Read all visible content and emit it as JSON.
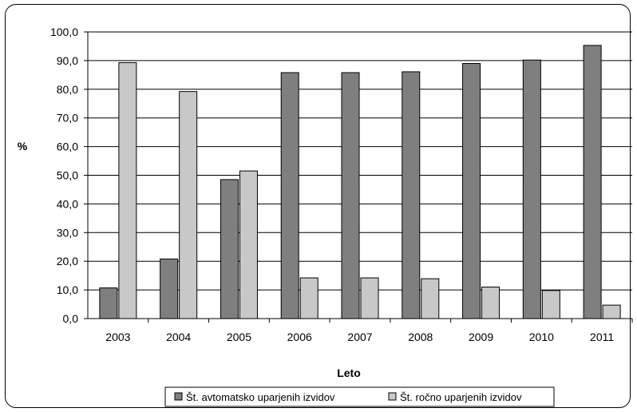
{
  "chart_data": {
    "type": "bar",
    "title": "",
    "xlabel": "Leto",
    "ylabel": "%",
    "categories": [
      "2003",
      "2004",
      "2005",
      "2006",
      "2007",
      "2008",
      "2009",
      "2010",
      "2011"
    ],
    "series": [
      {
        "name": "Št. avtomatsko uparjenih izvidov",
        "color": "#7f7f7f",
        "values": [
          10.7,
          20.8,
          48.5,
          85.8,
          85.8,
          86.1,
          89.0,
          90.2,
          95.3
        ]
      },
      {
        "name": "Št. ročno uparjenih izvidov",
        "color": "#c8c8c8",
        "values": [
          89.3,
          79.2,
          51.5,
          14.2,
          14.2,
          13.9,
          11.0,
          9.8,
          4.7
        ]
      }
    ],
    "ylim": [
      0,
      100
    ],
    "ytick_step": 10,
    "ytick_labels": [
      "0,0",
      "10,0",
      "20,0",
      "30,0",
      "40,0",
      "50,0",
      "60,0",
      "70,0",
      "80,0",
      "90,0",
      "100,0"
    ],
    "grid": true,
    "legend_position": "bottom"
  }
}
